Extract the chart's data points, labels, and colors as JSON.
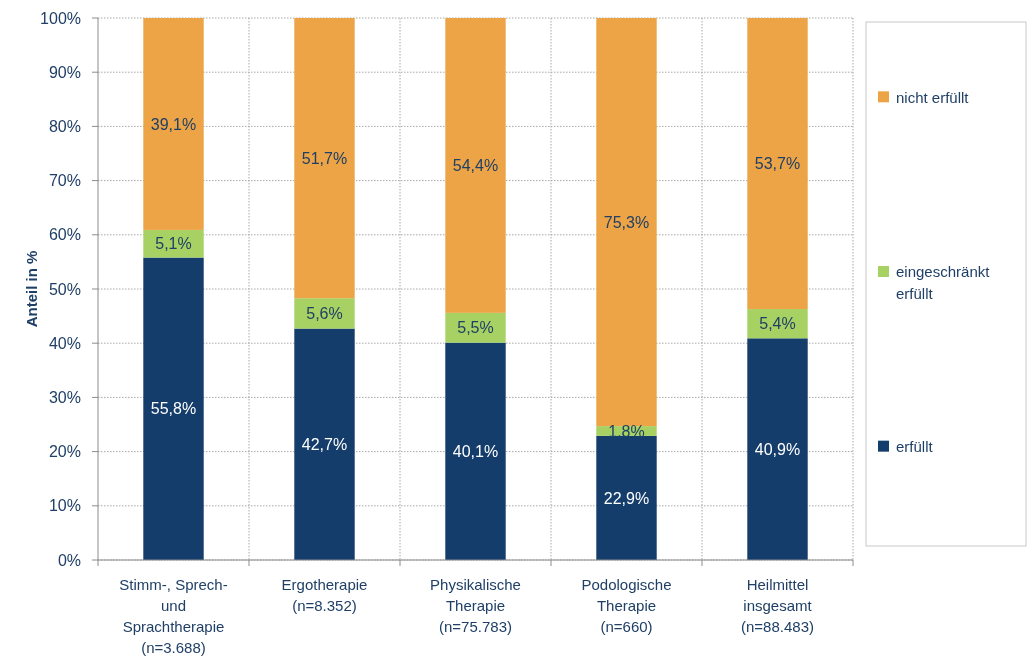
{
  "chart_data": {
    "type": "bar",
    "stacked": true,
    "ylabel": "Anteil in %",
    "categories": [
      "Stimm-, Sprech- und Sprachtherapie (n=3.688)",
      "Ergotherapie (n=8.352)",
      "Physikalische Therapie (n=75.783)",
      "Podologische Therapie (n=660)",
      "Heilmittel insgesamt (n=88.483)"
    ],
    "series": [
      {
        "name": "erfüllt",
        "color": "#143d6b",
        "values": [
          55.8,
          42.7,
          40.1,
          22.9,
          40.9
        ],
        "value_labels": [
          "55,8%",
          "42,7%",
          "40,1%",
          "22,9%",
          "40,9%"
        ]
      },
      {
        "name": "eingeschränkt erfüllt",
        "color": "#a8d163",
        "values": [
          5.1,
          5.6,
          5.5,
          1.8,
          5.4
        ],
        "value_labels": [
          "5,1%",
          "5,6%",
          "5,5%",
          "1,8%",
          "5,4%"
        ]
      },
      {
        "name": "nicht erfüllt",
        "color": "#eca446",
        "values": [
          39.1,
          51.7,
          54.4,
          75.3,
          53.7
        ],
        "value_labels": [
          "39,1%",
          "51,7%",
          "54,4%",
          "75,3%",
          "53,7%"
        ]
      }
    ],
    "ylim": [
      0,
      100
    ],
    "yticks": [
      {
        "value": 0,
        "label": "0%"
      },
      {
        "value": 10,
        "label": "10%"
      },
      {
        "value": 20,
        "label": "20%"
      },
      {
        "value": 30,
        "label": "30%"
      },
      {
        "value": 40,
        "label": "40%"
      },
      {
        "value": 50,
        "label": "50%"
      },
      {
        "value": 60,
        "label": "60%"
      },
      {
        "value": 70,
        "label": "70%"
      },
      {
        "value": 80,
        "label": "80%"
      },
      {
        "value": 90,
        "label": "90%"
      },
      {
        "value": 100,
        "label": "100%"
      }
    ],
    "grid": true,
    "legend": "right"
  }
}
